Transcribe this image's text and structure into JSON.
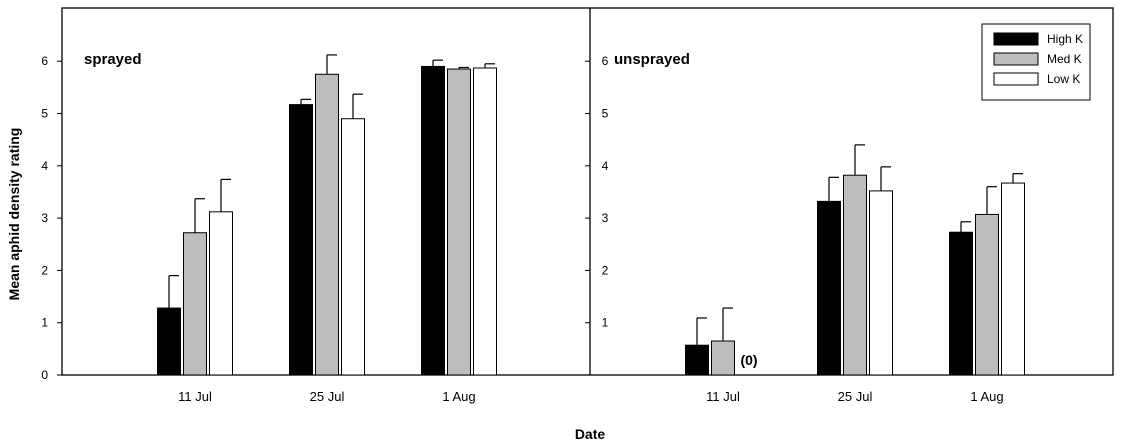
{
  "chart_data": {
    "type": "bar",
    "xlabel": "Date",
    "ylabel": "Mean aphid density rating",
    "ylim": [
      0,
      7
    ],
    "yticks": [
      0,
      1,
      2,
      3,
      4,
      5,
      6
    ],
    "right_yticks": [
      1,
      2,
      3,
      4,
      5,
      6
    ],
    "categories": [
      "11 Jul",
      "25 Jul",
      "1 Aug"
    ],
    "legend": {
      "placement": "top-right",
      "entries": [
        {
          "name": "High K",
          "color": "#000000"
        },
        {
          "name": "Med K",
          "color": "#bdbdbd"
        },
        {
          "name": "Low K",
          "color": "#ffffff"
        }
      ]
    },
    "panels": [
      {
        "title": "sprayed",
        "series": [
          {
            "name": "High K",
            "values": [
              1.28,
              5.17,
              5.9
            ],
            "errors": [
              0.62,
              0.1,
              0.12
            ]
          },
          {
            "name": "Med K",
            "values": [
              2.72,
              5.75,
              5.85
            ],
            "errors": [
              0.65,
              0.37,
              0.03
            ]
          },
          {
            "name": "Low K",
            "values": [
              3.12,
              4.9,
              5.87
            ],
            "errors": [
              0.62,
              0.47,
              0.08
            ]
          }
        ],
        "annotations": []
      },
      {
        "title": "unsprayed",
        "series": [
          {
            "name": "High K",
            "values": [
              0.57,
              3.32,
              2.73
            ],
            "errors": [
              0.52,
              0.46,
              0.2
            ]
          },
          {
            "name": "Med K",
            "values": [
              0.65,
              3.82,
              3.07
            ],
            "errors": [
              0.63,
              0.58,
              0.53
            ]
          },
          {
            "name": "Low K",
            "values": [
              0,
              3.52,
              3.67
            ],
            "errors": [
              0,
              0.46,
              0.18
            ]
          }
        ],
        "annotations": [
          {
            "text": "(0)",
            "category": "11 Jul",
            "series": "Low K"
          }
        ]
      }
    ]
  }
}
